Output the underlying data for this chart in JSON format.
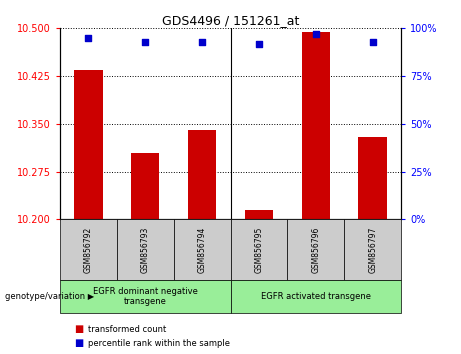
{
  "title": "GDS4496 / 151261_at",
  "categories": [
    "GSM856792",
    "GSM856793",
    "GSM856794",
    "GSM856795",
    "GSM856796",
    "GSM856797"
  ],
  "bar_values": [
    10.435,
    10.305,
    10.34,
    10.215,
    10.495,
    10.33
  ],
  "percentile_values": [
    95,
    93,
    93,
    92,
    97,
    93
  ],
  "ylim_left": [
    10.2,
    10.5
  ],
  "ylim_right": [
    0,
    100
  ],
  "yticks_left": [
    10.2,
    10.275,
    10.35,
    10.425,
    10.5
  ],
  "yticks_right": [
    0,
    25,
    50,
    75,
    100
  ],
  "bar_color": "#cc0000",
  "dot_color": "#0000cc",
  "bg_color": "#ffffff",
  "plot_bg": "#ffffff",
  "group1_label": "EGFR dominant negative\ntransgene",
  "group2_label": "EGFR activated transgene",
  "group_bg_color": "#99ee99",
  "xticklabels_bg": "#cccccc",
  "legend_red_label": "transformed count",
  "legend_blue_label": "percentile rank within the sample",
  "genotype_label": "genotype/variation"
}
